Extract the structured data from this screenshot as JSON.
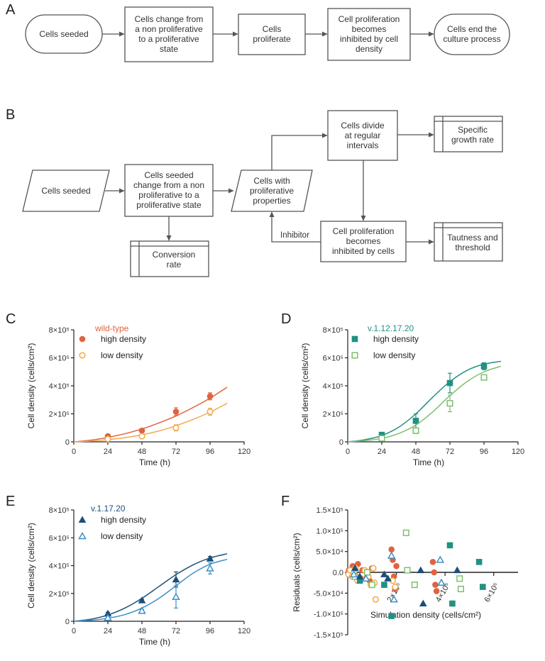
{
  "panels": {
    "A": {
      "letter": "A",
      "steps": [
        "Cells seeded",
        "Cells change from\na non proliferative\nto a proliferative\nstate",
        "Cells\nproliferate",
        "Cell proliferation\nbecomes\ninhibited by cell\ndensity",
        "Cells end the\nculture process"
      ]
    },
    "B": {
      "letter": "B",
      "cells_seeded": "Cells seeded",
      "change_state": "Cells seeded\nchange from a non\nproliferative to a\nproliferative state",
      "conversion_rate": "Conversion\nrate",
      "proliferative_properties": "Cells with\nproliferative\nproperties",
      "divide": "Cells divide\nat regular\nintervals",
      "specific_growth_rate": "Specific\ngrowth rate",
      "inhibited": "Cell proliferation\nbecomes\ninhibited by cells",
      "tautness": "Tautness and\nthreshold",
      "inhibitor_label": "Inhibitor"
    }
  },
  "colors": {
    "text": "#333333",
    "box_stroke": "#555555",
    "wt_high": "#e0623e",
    "wt_low": "#f0aa4e",
    "v112_high": "#219182",
    "v112_low": "#7fbf6e",
    "v117_high": "#1b4f7a",
    "v117_low": "#3f8fc5"
  },
  "chart_data": [
    {
      "panel": "C",
      "type": "scatter",
      "title": "wild-type",
      "xlabel": "Time (h)",
      "ylabel": "Cell density (cells/cm²)",
      "xlim": [
        0,
        120
      ],
      "ylim": [
        0,
        800000
      ],
      "x_ticks": [
        "0",
        "24",
        "48",
        "72",
        "96",
        "120"
      ],
      "y_ticks": [
        "0",
        "2×10⁵",
        "4×10⁵",
        "6×10⁵",
        "8×10⁵"
      ],
      "series": [
        {
          "name": "high density",
          "marker": "circle",
          "color": "#e0623e",
          "x": [
            24,
            48,
            72,
            96
          ],
          "y": [
            40000,
            80000,
            215000,
            325000
          ],
          "err": [
            8000,
            10000,
            28000,
            25000
          ],
          "fit_x": [
            0,
            12,
            24,
            36,
            48,
            60,
            72,
            84,
            96,
            108
          ],
          "fit_y": [
            0,
            12000,
            32000,
            58000,
            92000,
            135000,
            185000,
            245000,
            312000,
            390000
          ]
        },
        {
          "name": "low density",
          "marker": "circle-open",
          "color": "#f0aa4e",
          "x": [
            24,
            48,
            72,
            96
          ],
          "y": [
            20000,
            40000,
            100000,
            215000
          ],
          "err": [
            5000,
            8000,
            22000,
            25000
          ],
          "fit_x": [
            0,
            12,
            24,
            36,
            48,
            60,
            72,
            84,
            96,
            108
          ],
          "fit_y": [
            0,
            6000,
            16000,
            30000,
            50000,
            78000,
            115000,
            160000,
            212000,
            275000
          ]
        }
      ]
    },
    {
      "panel": "D",
      "type": "scatter",
      "title": "v.1.12.17.20",
      "xlabel": "Time (h)",
      "ylabel": "Cell density (cells/cm²)",
      "xlim": [
        0,
        120
      ],
      "ylim": [
        0,
        800000
      ],
      "x_ticks": [
        "0",
        "24",
        "48",
        "72",
        "96",
        "120"
      ],
      "y_ticks": [
        "0",
        "2×10⁵",
        "4×10⁵",
        "6×10⁵",
        "8×10⁵"
      ],
      "series": [
        {
          "name": "high density",
          "marker": "square",
          "color": "#219182",
          "x": [
            24,
            48,
            72,
            96
          ],
          "y": [
            50000,
            150000,
            420000,
            540000
          ],
          "err": [
            10000,
            50000,
            70000,
            25000
          ],
          "fit_x": [
            0,
            12,
            24,
            36,
            48,
            60,
            72,
            84,
            96,
            108
          ],
          "fit_y": [
            0,
            15000,
            45000,
            105000,
            200000,
            320000,
            430000,
            510000,
            555000,
            575000
          ]
        },
        {
          "name": "low density",
          "marker": "square-open",
          "color": "#7fbf6e",
          "x": [
            24,
            48,
            72,
            96
          ],
          "y": [
            25000,
            80000,
            275000,
            460000
          ],
          "err": [
            6000,
            20000,
            60000,
            15000
          ],
          "fit_x": [
            0,
            12,
            24,
            36,
            48,
            60,
            72,
            84,
            96,
            108
          ],
          "fit_y": [
            0,
            8000,
            25000,
            60000,
            120000,
            215000,
            330000,
            430000,
            500000,
            540000
          ]
        }
      ]
    },
    {
      "panel": "E",
      "type": "scatter",
      "title": "v.1.17.20",
      "xlabel": "Time (h)",
      "ylabel": "Cell density (cells/cm²)",
      "xlim": [
        0,
        120
      ],
      "ylim": [
        0,
        800000
      ],
      "x_ticks": [
        "0",
        "24",
        "48",
        "72",
        "96",
        "120"
      ],
      "y_ticks": [
        "0",
        "2×10⁵",
        "4×10⁵",
        "6×10⁵",
        "8×10⁵"
      ],
      "series": [
        {
          "name": "high density",
          "marker": "triangle",
          "color": "#1b4f7a",
          "x": [
            24,
            48,
            72,
            96
          ],
          "y": [
            55000,
            150000,
            300000,
            450000
          ],
          "err": [
            10000,
            10000,
            55000,
            15000
          ],
          "fit_x": [
            0,
            12,
            24,
            36,
            48,
            60,
            72,
            84,
            96,
            108
          ],
          "fit_y": [
            0,
            15000,
            45000,
            95000,
            165000,
            250000,
            335000,
            405000,
            455000,
            485000
          ]
        },
        {
          "name": "low density",
          "marker": "triangle-open",
          "color": "#3f8fc5",
          "x": [
            24,
            48,
            72,
            96
          ],
          "y": [
            25000,
            75000,
            175000,
            380000
          ],
          "err": [
            6000,
            10000,
            80000,
            40000
          ],
          "fit_x": [
            0,
            12,
            24,
            36,
            48,
            60,
            72,
            84,
            96,
            108
          ],
          "fit_y": [
            0,
            7000,
            22000,
            48000,
            95000,
            165000,
            255000,
            345000,
            410000,
            445000
          ]
        }
      ]
    },
    {
      "panel": "F",
      "type": "scatter",
      "xlabel": "Simulation density (cells/cm²)",
      "ylabel": "Residuals (cells/cm²)",
      "xlim": [
        0,
        700000
      ],
      "ylim": [
        -150000,
        150000
      ],
      "x_ticks": [
        "2×10⁵",
        "4×10⁵",
        "6×10⁵"
      ],
      "y_ticks": [
        "1.5×10⁵",
        "1.0×10⁵",
        "5.0×10⁴",
        "0.0",
        "-5.0×10⁴",
        "-1.0×10⁵",
        "-1.5×10⁵"
      ],
      "series": [
        {
          "name": "wild-type high",
          "marker": "circle",
          "color": "#e0623e",
          "x": [
            5000,
            12000,
            20000,
            28000,
            35000,
            42000,
            60000,
            75000,
            90000,
            100000,
            110000,
            180000,
            185000,
            190000,
            195000,
            200000,
            350000,
            355000,
            360000,
            365000
          ],
          "y": [
            5000,
            -5000,
            15000,
            10000,
            -10000,
            20000,
            5000,
            -15000,
            -20000,
            10000,
            -25000,
            55000,
            30000,
            -10000,
            -40000,
            15000,
            25000,
            0,
            -30000,
            -45000
          ]
        },
        {
          "name": "wild-type low",
          "marker": "circle-open",
          "color": "#f0aa4e",
          "x": [
            3000,
            10000,
            18000,
            25000,
            32000,
            40000,
            55000,
            70000,
            85000,
            95000,
            105000,
            110000,
            115000,
            185000,
            195000
          ],
          "y": [
            -5000,
            5000,
            -10000,
            0,
            10000,
            -20000,
            -15000,
            5000,
            -10000,
            -30000,
            10000,
            -25000,
            -65000,
            -20000,
            -35000
          ]
        },
        {
          "name": "v.1.12.17.20 high",
          "marker": "square",
          "color": "#219182",
          "x": [
            50000,
            150000,
            180000,
            420000,
            430000,
            540000,
            555000
          ],
          "y": [
            -20000,
            -30000,
            -105000,
            65000,
            -75000,
            25000,
            -35000
          ]
        },
        {
          "name": "v.1.12.17.20 low",
          "marker": "square-open",
          "color": "#7fbf6e",
          "x": [
            30000,
            80000,
            100000,
            240000,
            245000,
            275000,
            460000,
            465000
          ],
          "y": [
            -10000,
            0,
            -30000,
            95000,
            5000,
            -30000,
            -15000,
            -40000
          ]
        },
        {
          "name": "v.1.17.20 high",
          "marker": "triangle",
          "color": "#1b4f7a",
          "x": [
            30000,
            50000,
            150000,
            165000,
            300000,
            310000,
            450000
          ],
          "y": [
            10000,
            -10000,
            -5000,
            -15000,
            5000,
            -75000,
            5000
          ]
        },
        {
          "name": "v.1.17.20 low",
          "marker": "triangle-open",
          "color": "#3f8fc5",
          "x": [
            25000,
            75000,
            180000,
            190000,
            380000,
            385000
          ],
          "y": [
            -5000,
            -15000,
            40000,
            -65000,
            30000,
            -25000
          ]
        }
      ]
    }
  ]
}
